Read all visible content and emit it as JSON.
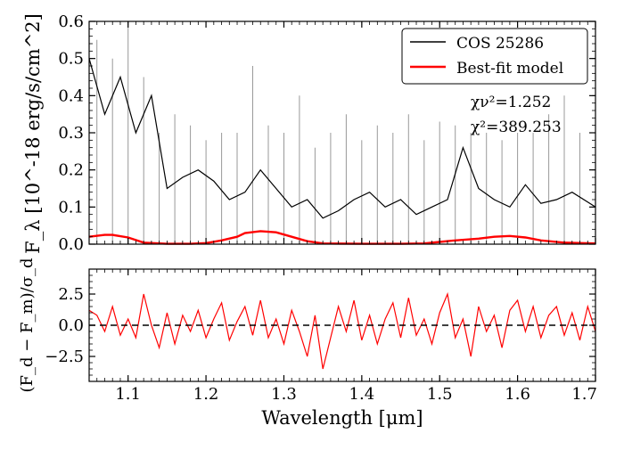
{
  "chart_data": [
    {
      "type": "line",
      "panel": "flux",
      "ylabel": "F_λ [10^-18 erg/s/cm^2]",
      "xlim": [
        1.05,
        1.7
      ],
      "ylim": [
        0.0,
        0.6
      ],
      "yticks": [
        "0.0",
        "0.1",
        "0.2",
        "0.3",
        "0.4",
        "0.5",
        "0.6"
      ],
      "legend": {
        "placement": "top-right",
        "entries": [
          "COS 25286",
          "Best-fit model"
        ]
      },
      "stats": {
        "chi_nu2": "1.252",
        "chi2": "389.253"
      },
      "series": [
        {
          "name": "COS 25286",
          "color": "#000000",
          "x": [
            1.05,
            1.07,
            1.09,
            1.11,
            1.13,
            1.15,
            1.17,
            1.19,
            1.21,
            1.23,
            1.25,
            1.27,
            1.29,
            1.31,
            1.33,
            1.35,
            1.37,
            1.39,
            1.41,
            1.43,
            1.45,
            1.47,
            1.49,
            1.51,
            1.53,
            1.55,
            1.57,
            1.59,
            1.61,
            1.63,
            1.65,
            1.67,
            1.7
          ],
          "values": [
            0.5,
            0.35,
            0.45,
            0.3,
            0.4,
            0.15,
            0.18,
            0.2,
            0.17,
            0.12,
            0.14,
            0.2,
            0.15,
            0.1,
            0.12,
            0.07,
            0.09,
            0.12,
            0.14,
            0.1,
            0.12,
            0.08,
            0.1,
            0.12,
            0.26,
            0.15,
            0.12,
            0.1,
            0.16,
            0.11,
            0.12,
            0.14,
            0.1
          ]
        },
        {
          "name": "Best-fit model",
          "color": "#ff0000",
          "x": [
            1.05,
            1.07,
            1.08,
            1.1,
            1.12,
            1.15,
            1.18,
            1.2,
            1.22,
            1.24,
            1.25,
            1.27,
            1.29,
            1.31,
            1.33,
            1.35,
            1.4,
            1.45,
            1.48,
            1.5,
            1.52,
            1.55,
            1.57,
            1.59,
            1.61,
            1.63,
            1.66,
            1.7
          ],
          "values": [
            0.02,
            0.025,
            0.025,
            0.018,
            0.004,
            0.001,
            0.001,
            0.003,
            0.01,
            0.02,
            0.03,
            0.035,
            0.032,
            0.02,
            0.008,
            0.002,
            0.001,
            0.001,
            0.002,
            0.006,
            0.01,
            0.015,
            0.02,
            0.022,
            0.018,
            0.01,
            0.004,
            0.002
          ]
        },
        {
          "name": "noise",
          "color": "#999999",
          "x": [
            1.05,
            1.06,
            1.08,
            1.1,
            1.12,
            1.14,
            1.16,
            1.18,
            1.2,
            1.22,
            1.24,
            1.26,
            1.28,
            1.3,
            1.32,
            1.34,
            1.36,
            1.38,
            1.4,
            1.42,
            1.44,
            1.46,
            1.48,
            1.5,
            1.52,
            1.54,
            1.56,
            1.58,
            1.6,
            1.62,
            1.64,
            1.66,
            1.68,
            1.7
          ],
          "values": [
            0.6,
            0.55,
            0.5,
            0.6,
            0.45,
            0.3,
            0.35,
            0.32,
            0.28,
            0.3,
            0.3,
            0.48,
            0.32,
            0.3,
            0.4,
            0.26,
            0.3,
            0.35,
            0.28,
            0.32,
            0.3,
            0.35,
            0.28,
            0.33,
            0.32,
            0.3,
            0.3,
            0.28,
            0.3,
            0.3,
            0.35,
            0.4,
            0.3,
            0.25
          ]
        }
      ]
    },
    {
      "type": "line",
      "panel": "residuals",
      "xlabel": "Wavelength [μm]",
      "ylabel": "(F_d − F_m)/σ_d",
      "xlim": [
        1.05,
        1.7
      ],
      "ylim": [
        -4.5,
        4.5
      ],
      "xticks": [
        "1.1",
        "1.2",
        "1.3",
        "1.4",
        "1.5",
        "1.6",
        "1.7"
      ],
      "yticks": [
        "2.5",
        "0.0",
        "−2.5"
      ],
      "reference_line": 0.0,
      "series": [
        {
          "name": "residuals",
          "color": "#ff0000",
          "x": [
            1.05,
            1.06,
            1.07,
            1.08,
            1.09,
            1.1,
            1.11,
            1.12,
            1.13,
            1.14,
            1.15,
            1.16,
            1.17,
            1.18,
            1.19,
            1.2,
            1.21,
            1.22,
            1.23,
            1.24,
            1.25,
            1.26,
            1.27,
            1.28,
            1.29,
            1.3,
            1.31,
            1.32,
            1.33,
            1.34,
            1.35,
            1.36,
            1.37,
            1.38,
            1.39,
            1.4,
            1.41,
            1.42,
            1.43,
            1.44,
            1.45,
            1.46,
            1.47,
            1.48,
            1.49,
            1.5,
            1.51,
            1.52,
            1.53,
            1.54,
            1.55,
            1.56,
            1.57,
            1.58,
            1.59,
            1.6,
            1.61,
            1.62,
            1.63,
            1.64,
            1.65,
            1.66,
            1.67,
            1.68,
            1.69,
            1.7
          ],
          "values": [
            1.2,
            0.8,
            -0.5,
            1.5,
            -0.8,
            0.5,
            -1.0,
            2.5,
            0.0,
            -1.8,
            1.0,
            -1.5,
            0.8,
            -0.5,
            1.2,
            -1.0,
            0.5,
            1.8,
            -1.2,
            0.3,
            1.5,
            -0.8,
            2.0,
            -1.0,
            0.5,
            -1.5,
            1.2,
            -0.5,
            -2.5,
            0.8,
            -3.5,
            -1.0,
            1.5,
            -0.5,
            2.0,
            -1.2,
            0.8,
            -1.5,
            0.5,
            1.8,
            -1.0,
            2.2,
            -0.8,
            0.5,
            -1.5,
            1.0,
            2.5,
            -1.0,
            0.5,
            -2.5,
            1.5,
            -0.5,
            0.8,
            -1.8,
            1.2,
            2.0,
            -0.5,
            1.5,
            -1.0,
            0.8,
            1.5,
            -0.8,
            1.0,
            -1.2,
            1.5,
            -0.5
          ]
        }
      ]
    }
  ]
}
